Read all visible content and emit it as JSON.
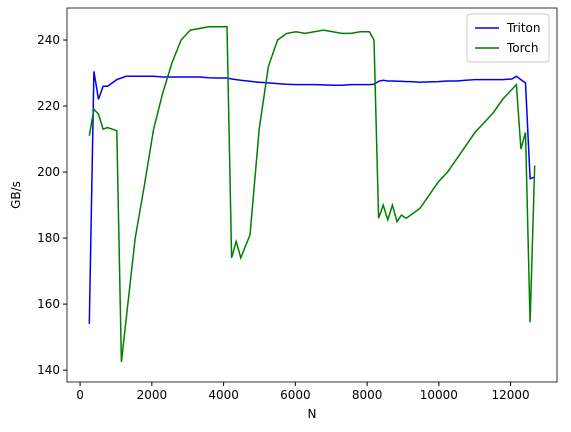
{
  "chart_data": {
    "type": "line",
    "xlabel": "N",
    "ylabel": "GB/s",
    "x": [
      256,
      384,
      512,
      640,
      768,
      1024,
      1152,
      1280,
      1536,
      1792,
      2048,
      2304,
      2560,
      2816,
      3072,
      3328,
      3584,
      3840,
      4096,
      4224,
      4352,
      4480,
      4736,
      4992,
      5248,
      5504,
      5760,
      6016,
      6272,
      6528,
      6784,
      7040,
      7296,
      7552,
      7808,
      8064,
      8192,
      8320,
      8448,
      8576,
      8704,
      8832,
      8960,
      9088,
      9216,
      9472,
      9728,
      9984,
      10240,
      10496,
      10752,
      11008,
      11264,
      11520,
      11776,
      12032,
      12160,
      12288,
      12416,
      12544,
      12672
    ],
    "series": [
      {
        "name": "Triton",
        "color": "#0000ff",
        "values": [
          154,
          230.5,
          222,
          226,
          226,
          228,
          228.5,
          229,
          229,
          229,
          229,
          228.8,
          228.8,
          228.8,
          228.8,
          228.8,
          228.6,
          228.5,
          228.5,
          228.2,
          228,
          227.8,
          227.5,
          227.2,
          227,
          226.8,
          226.6,
          226.5,
          226.5,
          226.5,
          226.4,
          226.3,
          226.3,
          226.5,
          226.5,
          226.5,
          226.6,
          227.5,
          227.8,
          227.6,
          227.6,
          227.5,
          227.5,
          227.4,
          227.4,
          227.2,
          227.3,
          227.4,
          227.6,
          227.6,
          227.8,
          228,
          228,
          228,
          228,
          228.2,
          229,
          228,
          227,
          198,
          198.5
        ]
      },
      {
        "name": "Torch",
        "color": "#008000",
        "values": [
          211,
          219,
          217.5,
          213,
          213.5,
          212.5,
          142.5,
          155,
          180,
          196,
          213,
          224,
          233,
          240,
          243,
          243.5,
          244,
          244,
          244,
          174,
          179,
          174,
          181,
          213,
          232,
          240,
          242,
          242.5,
          242,
          242.5,
          243,
          242.5,
          242,
          242,
          242.5,
          242.5,
          240,
          186,
          190,
          185.5,
          190,
          185,
          187,
          186,
          187,
          189,
          193,
          197,
          200,
          204,
          208,
          212,
          215,
          218,
          222,
          225,
          226.5,
          207,
          212,
          154.5,
          202
        ]
      }
    ],
    "xlim": [
      -365,
      13293
    ],
    "ylim": [
      136.4,
      249.7
    ],
    "xticks": [
      0,
      2000,
      4000,
      6000,
      8000,
      10000,
      12000
    ],
    "yticks": [
      140,
      160,
      180,
      200,
      220,
      240
    ],
    "legend": "upper right"
  }
}
